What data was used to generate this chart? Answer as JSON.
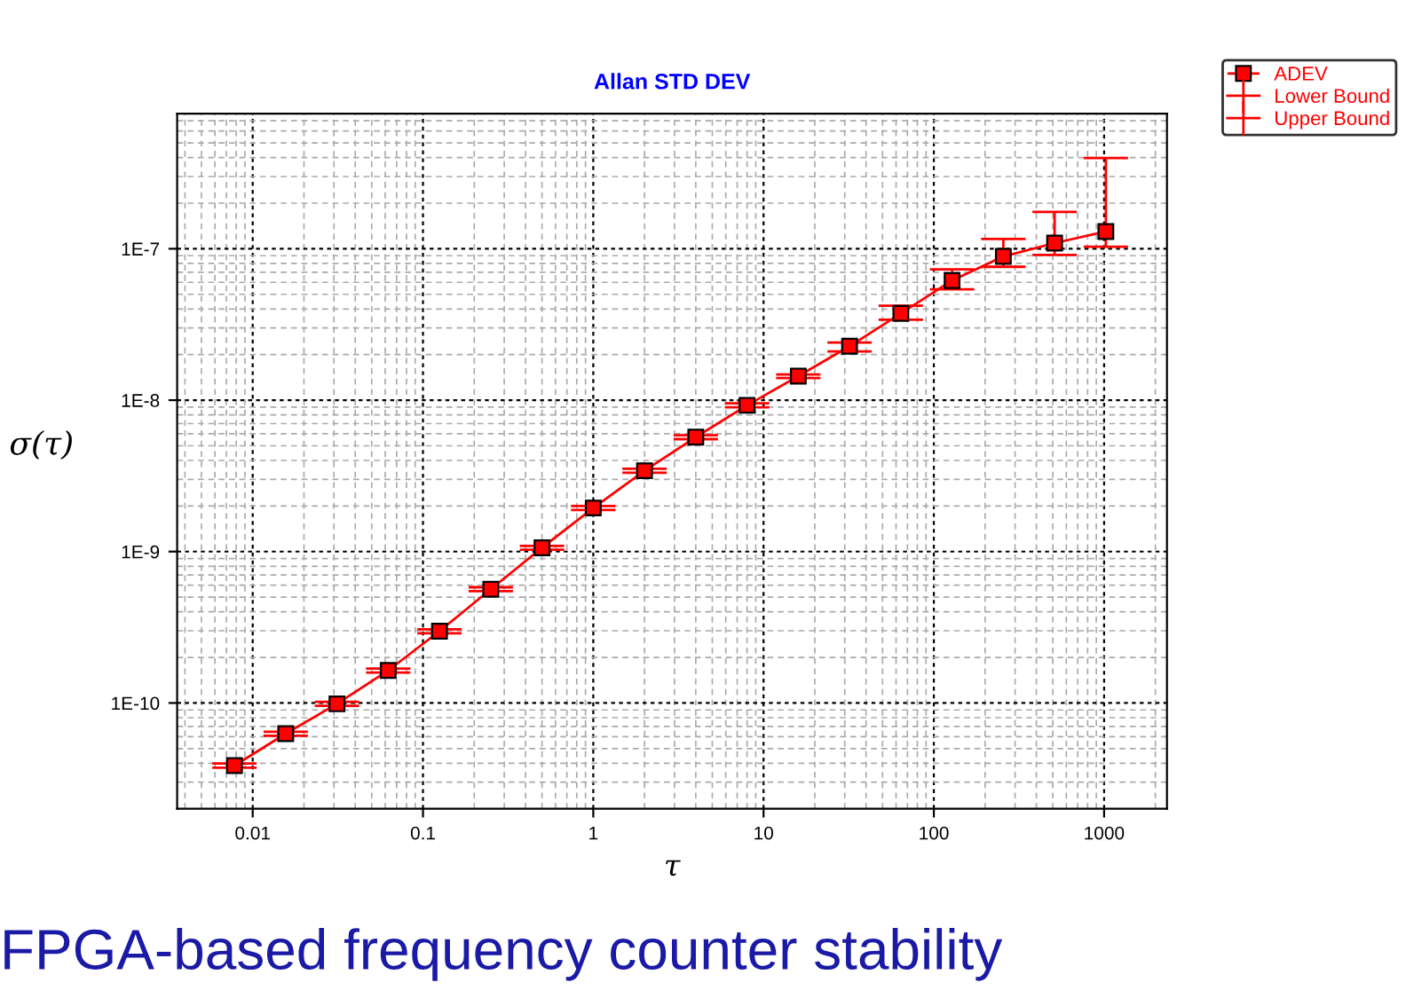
{
  "chart_data": {
    "type": "line",
    "subtitle": "Allan STD DEV",
    "xlabel": "τ",
    "ylabel": "σ(τ)",
    "x": [
      0.0078125,
      0.015625,
      0.03125,
      0.0625,
      0.125,
      0.25,
      0.5,
      1,
      2,
      4,
      8,
      16,
      32,
      64,
      128,
      256,
      512,
      1024
    ],
    "series": [
      {
        "name": "ADEV",
        "color": "#ff0000",
        "marker": "square",
        "values": [
          3.86e-11,
          6.27e-11,
          9.87e-11,
          1.64e-10,
          2.98e-10,
          5.64e-10,
          1.06e-09,
          1.94e-09,
          3.42e-09,
          5.7e-09,
          9.25e-09,
          1.44e-08,
          2.27e-08,
          3.74e-08,
          6.17e-08,
          8.9e-08,
          1.09e-07,
          1.3e-07
        ],
        "errors": [
          1.2e-12,
          1.9e-12,
          3e-12,
          5e-12,
          9e-12,
          1.7e-11,
          3e-11,
          6e-11,
          1e-10,
          1.7e-10,
          2.8e-10,
          4e-10,
          [
            2.1e-08,
            2.4e-08
          ],
          [
            3.4e-08,
            4.2e-08
          ],
          [
            5.4e-08,
            7.3e-08
          ],
          [
            7.6e-08,
            1.16e-07
          ],
          [
            9.1e-08,
            1.75e-07
          ],
          [
            1.03e-07,
            3.98e-07
          ]
        ]
      }
    ],
    "log": "xy",
    "xlim": [
      0.0036,
      2340
    ],
    "ylim": [
      2e-11,
      7.8e-07
    ],
    "xticks": [
      0.01,
      0.1,
      1,
      10,
      100,
      1000
    ],
    "yticks": [
      {
        "value": 1e-10,
        "label": "1E-10"
      },
      {
        "value": 1e-09,
        "label": "1E-9"
      },
      {
        "value": 1e-08,
        "label": "1E-8"
      },
      {
        "value": 1e-07,
        "label": "1E-7"
      }
    ],
    "grid": true,
    "legend": "top right",
    "annotations": [
      "FPGA-based frequency counter stability",
      "Lower Bound",
      "Upper Bound"
    ]
  }
}
